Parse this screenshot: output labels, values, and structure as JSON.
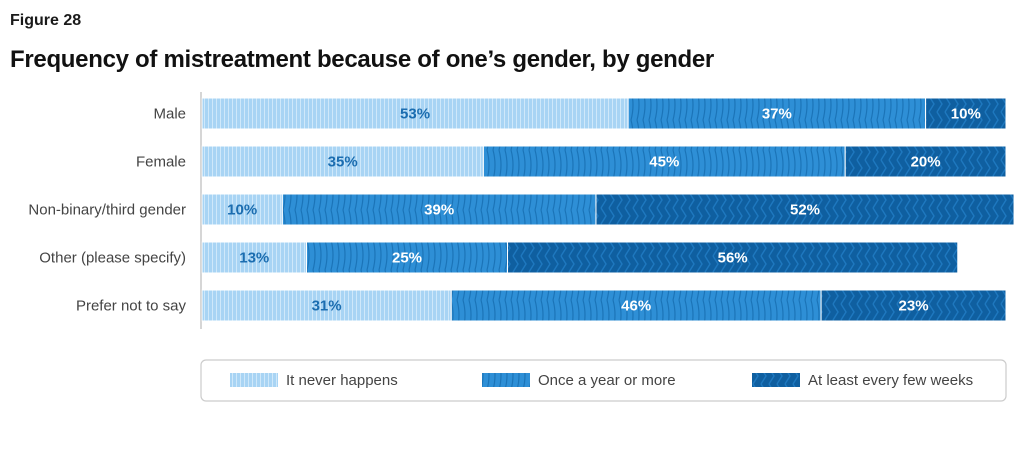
{
  "figure_label": "Figure 28",
  "colors": {
    "never": "#a8d4f4",
    "once": "#2e8fd6",
    "weeks": "#0f5fa0",
    "axis": "#bbbbbb"
  },
  "chart_data": {
    "type": "bar",
    "orientation": "horizontal",
    "stacked": true,
    "title": "Frequency of mistreatment because of one’s gender, by gender",
    "categories": [
      "Male",
      "Female",
      "Non-binary/third gender",
      "Other (please specify)",
      "Prefer not to say"
    ],
    "series": [
      {
        "name": "It never happens",
        "values": [
          53,
          35,
          10,
          13,
          31
        ]
      },
      {
        "name": "Once a year or more",
        "values": [
          37,
          45,
          39,
          25,
          46
        ]
      },
      {
        "name": "At least every few weeks",
        "values": [
          10,
          20,
          52,
          56,
          23
        ]
      }
    ],
    "value_labels": [
      [
        "53%",
        "35%",
        "10%",
        "13%",
        "31%"
      ],
      [
        "37%",
        "45%",
        "39%",
        "25%",
        "46%"
      ],
      [
        "10%",
        "20%",
        "52%",
        "56%",
        "23%"
      ]
    ],
    "legend_position": "bottom"
  }
}
